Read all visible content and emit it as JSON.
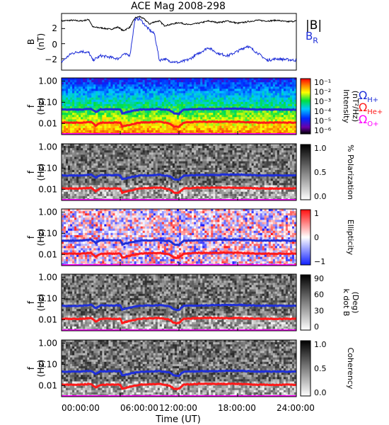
{
  "title": "ACE Mag 2008-298",
  "xlabel": "Time (UT)",
  "x_ticks": [
    "00:00:00",
    "06:00:00",
    "12:00:00",
    "18:00:00",
    "24:00:00"
  ],
  "colors": {
    "b_total": "#000000",
    "b_r": "#1f2fd8",
    "h_plus": "#1f2fd8",
    "he_plus": "#ff1a1a",
    "o_plus": "#ff00ff"
  },
  "legend": {
    "b_total": "|B|",
    "b_r": "B",
    "b_r_sub": "R",
    "omega_h": "Ω",
    "omega_h_sub": "H+",
    "omega_he": "Ω",
    "omega_he_sub": "He+",
    "omega_o": "Ω",
    "omega_o_sub": "O+"
  },
  "panel_b": {
    "ylabel_1": "B",
    "ylabel_2": "(nT)",
    "y_ticks": [
      "2",
      "0",
      "−2"
    ]
  },
  "spectro_ylabel_1": "f",
  "spectro_ylabel_2": "(Hz)",
  "freq_ticks": [
    "1.00",
    "0.10",
    "0.01"
  ],
  "colorbars": [
    {
      "label_1": "Intensity",
      "label_2": "(nT²/Hz)",
      "ticks": [
        "10⁻¹",
        "10⁻²",
        "10⁻³",
        "10⁻⁴",
        "10⁻⁵",
        "10⁻⁶"
      ]
    },
    {
      "label_1": "% Polarization",
      "label_2": "",
      "ticks": [
        "1.0",
        "0.5",
        "0.0"
      ]
    },
    {
      "label_1": "Ellipticity",
      "label_2": "",
      "ticks": [
        "1",
        "0",
        "−1"
      ]
    },
    {
      "label_1": "k dot B",
      "label_2": "(Deg)",
      "ticks": [
        "90",
        "60",
        "30",
        "0"
      ]
    },
    {
      "label_1": "Coherency",
      "label_2": "",
      "ticks": [
        "1.0",
        "0.5",
        "0.0"
      ]
    }
  ],
  "chart_data": [
    {
      "type": "line",
      "title": "ACE Mag 2008-298",
      "ylabel": "B (nT)",
      "xlim": [
        0,
        24
      ],
      "ylim": [
        -3.5,
        4
      ],
      "x_hours": [
        0,
        1,
        2,
        2.8,
        3.2,
        4,
        5,
        5.8,
        6.3,
        7,
        7.5,
        8,
        8.5,
        9,
        9.5,
        10,
        10.5,
        11,
        12,
        13,
        14,
        15,
        16,
        17,
        18,
        19,
        20,
        21,
        22,
        23,
        24
      ],
      "series": [
        {
          "name": "|B|",
          "values": [
            3.0,
            3.1,
            3.0,
            3.2,
            2.2,
            2.1,
            1.9,
            2.2,
            1.7,
            2.2,
            3.4,
            3.6,
            3.2,
            2.6,
            2.9,
            3.0,
            2.4,
            2.5,
            2.8,
            2.5,
            2.7,
            3.0,
            2.8,
            3.0,
            2.7,
            2.9,
            3.1,
            3.0,
            3.1,
            2.9,
            3.0
          ]
        },
        {
          "name": "B",
          "values": [
            -2.4,
            -1.3,
            -1.0,
            -1.2,
            -2.2,
            -1.6,
            -1.8,
            -2.0,
            -1.4,
            -1.5,
            3.2,
            3.3,
            2.5,
            1.8,
            1.3,
            -2.2,
            -2.0,
            -2.3,
            -2.5,
            -2.1,
            -1.3,
            -0.5,
            -1.3,
            -1.6,
            -1.0,
            -0.3,
            -1.2,
            -2.2,
            -2.0,
            -2.1,
            -2.2
          ]
        }
      ]
    },
    {
      "type": "heatmap",
      "ylabel": "f (Hz)",
      "yscale": "log",
      "ylim": [
        0.003,
        1.4
      ],
      "colorbar": "Intensity (nT²/Hz)",
      "clim": [
        1e-06,
        0.1
      ],
      "x_hours": [
        0,
        2,
        3,
        3.5,
        4,
        6,
        6.2,
        8,
        10,
        11,
        11.5,
        12,
        12.5,
        14,
        18,
        20,
        24
      ],
      "lines": [
        {
          "name": "ΩH+",
          "values": [
            0.045,
            0.045,
            0.05,
            0.035,
            0.047,
            0.047,
            0.03,
            0.045,
            0.048,
            0.043,
            0.03,
            0.028,
            0.045,
            0.047,
            0.05,
            0.046,
            0.045
          ]
        },
        {
          "name": "ΩHe+",
          "values": [
            0.011,
            0.011,
            0.012,
            0.008,
            0.011,
            0.011,
            0.007,
            0.011,
            0.012,
            0.01,
            0.007,
            0.007,
            0.011,
            0.012,
            0.012,
            0.011,
            0.011
          ]
        },
        {
          "name": "ΩO+",
          "values": [
            0.0028,
            0.0028,
            0.003,
            0.0022,
            0.0028,
            0.0028,
            0.002,
            0.0028,
            0.003,
            0.0026,
            0.002,
            0.0019,
            0.0028,
            0.003,
            0.003,
            0.0028,
            0.0028
          ]
        }
      ]
    },
    {
      "type": "heatmap",
      "ylabel": "f (Hz)",
      "yscale": "log",
      "colorbar": "% Polarization",
      "clim": [
        0,
        1
      ]
    },
    {
      "type": "heatmap",
      "ylabel": "f (Hz)",
      "yscale": "log",
      "colorbar": "Ellipticity",
      "clim": [
        -1,
        1
      ]
    },
    {
      "type": "heatmap",
      "ylabel": "f (Hz)",
      "yscale": "log",
      "colorbar": "k dot B (Deg)",
      "clim": [
        0,
        90
      ]
    },
    {
      "type": "heatmap",
      "ylabel": "f (Hz)",
      "yscale": "log",
      "colorbar": "Coherency",
      "clim": [
        0,
        1
      ]
    }
  ]
}
